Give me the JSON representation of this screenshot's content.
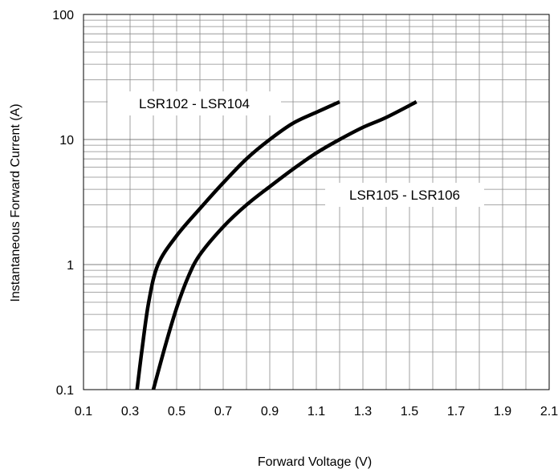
{
  "chart_data": {
    "type": "line",
    "title": "",
    "xlabel": "Forward Voltage (V)",
    "ylabel": "Instantaneous Forward Current (A)",
    "xlim": [
      0.1,
      2.1
    ],
    "ylim": [
      0.1,
      100
    ],
    "yscale": "log",
    "grid": true,
    "x_ticks": [
      0.1,
      0.3,
      0.5,
      0.7,
      0.9,
      1.1,
      1.3,
      1.5,
      1.7,
      1.9,
      2.1
    ],
    "x_tick_labels": [
      "0.1",
      "0.3",
      "0.5",
      "0.7",
      "0.9",
      "1.1",
      "1.3",
      "1.5",
      "1.7",
      "1.9",
      "2.1"
    ],
    "y_ticks": [
      0.1,
      1,
      10,
      100
    ],
    "y_tick_labels": [
      "0.1",
      "1",
      "10",
      "100"
    ],
    "series": [
      {
        "name": "LSR102 - LSR104",
        "color": "#000000",
        "points": [
          [
            0.33,
            0.1
          ],
          [
            0.35,
            0.2
          ],
          [
            0.38,
            0.5
          ],
          [
            0.42,
            1.0
          ],
          [
            0.5,
            1.7
          ],
          [
            0.6,
            2.8
          ],
          [
            0.7,
            4.5
          ],
          [
            0.8,
            7.0
          ],
          [
            0.9,
            10.0
          ],
          [
            1.0,
            13.5
          ],
          [
            1.1,
            16.5
          ],
          [
            1.2,
            20.0
          ]
        ]
      },
      {
        "name": "LSR105 - LSR106",
        "color": "#000000",
        "points": [
          [
            0.4,
            0.1
          ],
          [
            0.45,
            0.22
          ],
          [
            0.5,
            0.45
          ],
          [
            0.55,
            0.8
          ],
          [
            0.6,
            1.2
          ],
          [
            0.7,
            2.0
          ],
          [
            0.8,
            3.0
          ],
          [
            0.9,
            4.2
          ],
          [
            1.0,
            5.8
          ],
          [
            1.1,
            7.8
          ],
          [
            1.2,
            10.0
          ],
          [
            1.3,
            12.5
          ],
          [
            1.4,
            15.0
          ],
          [
            1.53,
            20.0
          ]
        ]
      }
    ]
  }
}
